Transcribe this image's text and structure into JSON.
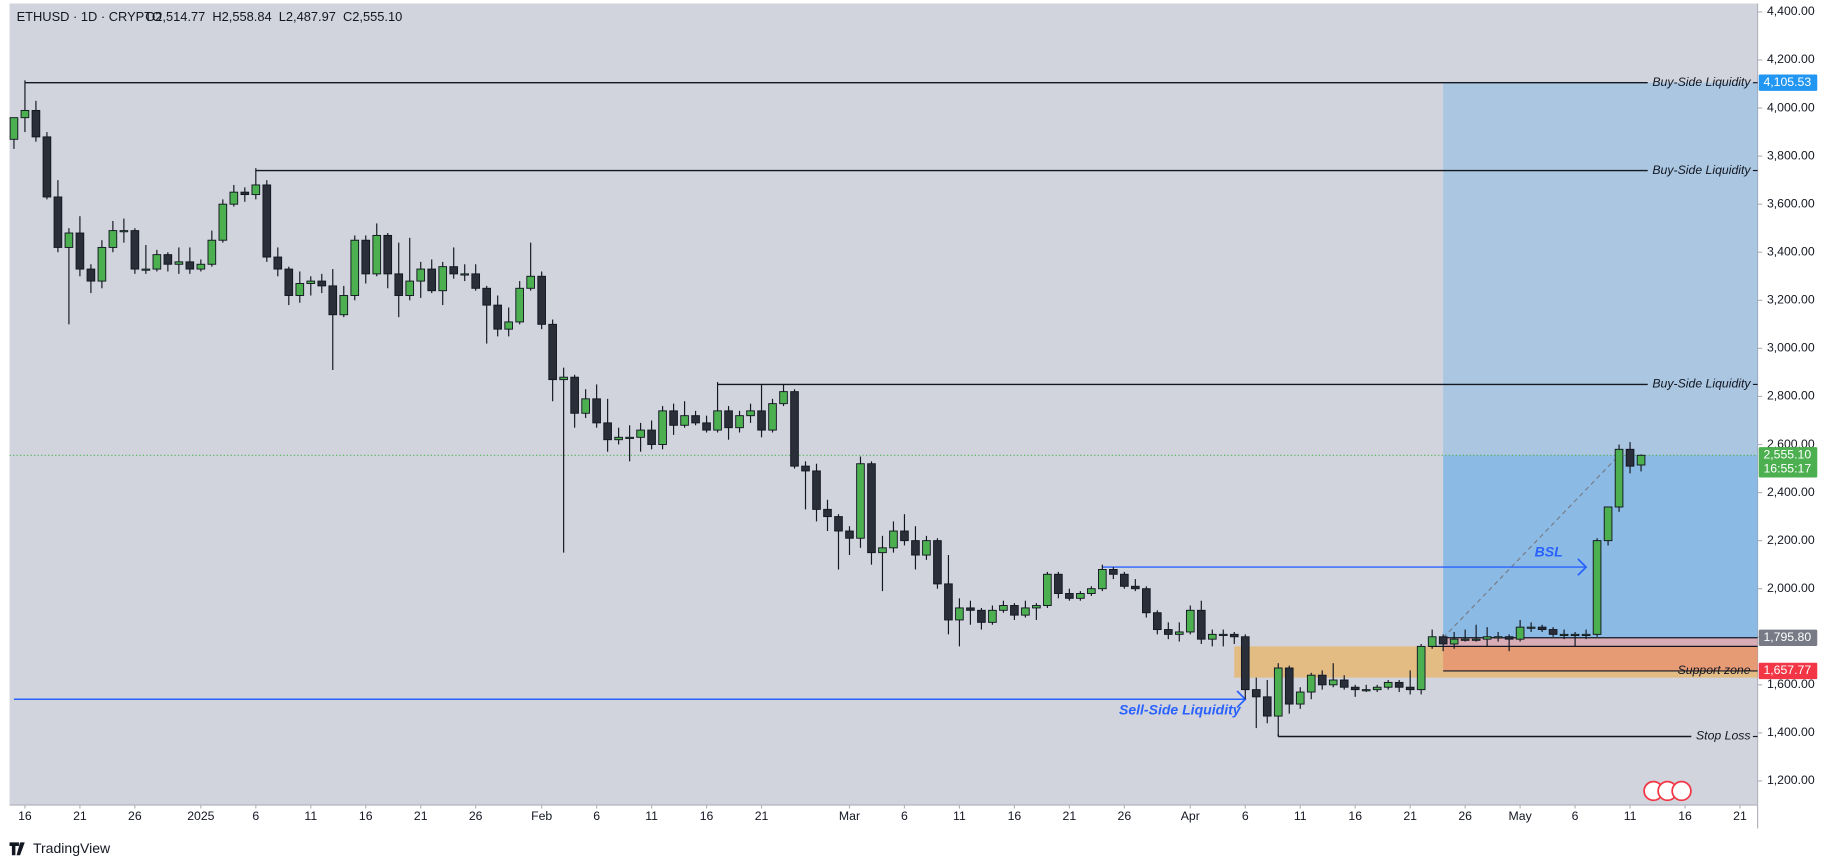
{
  "chart_data": {
    "type": "candlestick",
    "header": {
      "symbol": "ETHUSD · 1D · CRYPTO",
      "ohlc": [
        "O2,514.77",
        "H2,558.84",
        "L2,487.97",
        "C2,555.10"
      ]
    },
    "brand": "TradingView",
    "up_color": "#4caf50",
    "down_color": "#2a2e39",
    "xlim": [
      -0.4,
      158.6
    ],
    "xticks": [
      {
        "value": 1,
        "label": "16"
      },
      {
        "value": 6,
        "label": "21"
      },
      {
        "value": 11,
        "label": "26"
      },
      {
        "value": 17,
        "label": "2025"
      },
      {
        "value": 22,
        "label": "6"
      },
      {
        "value": 27,
        "label": "11"
      },
      {
        "value": 32,
        "label": "16"
      },
      {
        "value": 37,
        "label": "21"
      },
      {
        "value": 42,
        "label": "26"
      },
      {
        "value": 48,
        "label": "Feb"
      },
      {
        "value": 53,
        "label": "6"
      },
      {
        "value": 58,
        "label": "11"
      },
      {
        "value": 63,
        "label": "16"
      },
      {
        "value": 68,
        "label": "21"
      },
      {
        "value": 76,
        "label": "Mar"
      },
      {
        "value": 81,
        "label": "6"
      },
      {
        "value": 86,
        "label": "11"
      },
      {
        "value": 91,
        "label": "16"
      },
      {
        "value": 96,
        "label": "21"
      },
      {
        "value": 101,
        "label": "26"
      },
      {
        "value": 107,
        "label": "Apr"
      },
      {
        "value": 112,
        "label": "6"
      },
      {
        "value": 117,
        "label": "11"
      },
      {
        "value": 122,
        "label": "16"
      },
      {
        "value": 127,
        "label": "21"
      },
      {
        "value": 132,
        "label": "26"
      },
      {
        "value": 137,
        "label": "May"
      },
      {
        "value": 142,
        "label": "6"
      },
      {
        "value": 147,
        "label": "11"
      },
      {
        "value": 152,
        "label": "16"
      },
      {
        "value": 157,
        "label": "21"
      }
    ],
    "ylim": [
      1100,
      4435
    ],
    "yticks": [
      {
        "value": 1200,
        "label": "1,200.00"
      },
      {
        "value": 1400,
        "label": "1,400.00"
      },
      {
        "value": 1600,
        "label": "1,600.00"
      },
      {
        "value": 1800,
        "label": "1,800.00"
      },
      {
        "value": 2000,
        "label": "2,000.00"
      },
      {
        "value": 2200,
        "label": "2,200.00"
      },
      {
        "value": 2400,
        "label": "2,400.00"
      },
      {
        "value": 2600,
        "label": "2,600.00"
      },
      {
        "value": 2800,
        "label": "2,800.00"
      },
      {
        "value": 3000,
        "label": "3,000.00"
      },
      {
        "value": 3200,
        "label": "3,200.00"
      },
      {
        "value": 3400,
        "label": "3,400.00"
      },
      {
        "value": 3600,
        "label": "3,600.00"
      },
      {
        "value": 3800,
        "label": "3,800.00"
      },
      {
        "value": 4000,
        "label": "4,000.00"
      },
      {
        "value": 4200,
        "label": "4,200.00"
      },
      {
        "value": 4400,
        "label": "4,400.00"
      }
    ],
    "candles": [
      [
        3870,
        3960,
        3830,
        3960
      ],
      [
        3960,
        4105.53,
        3900,
        3990
      ],
      [
        3990,
        4030,
        3860,
        3880
      ],
      [
        3880,
        3900,
        3620,
        3630
      ],
      [
        3630,
        3700,
        3400,
        3420
      ],
      [
        3420,
        3500,
        3100,
        3480
      ],
      [
        3480,
        3550,
        3300,
        3330
      ],
      [
        3330,
        3350,
        3230,
        3280
      ],
      [
        3280,
        3450,
        3250,
        3420
      ],
      [
        3420,
        3530,
        3400,
        3490
      ],
      [
        3490,
        3540,
        3440,
        3490
      ],
      [
        3490,
        3500,
        3310,
        3330
      ],
      [
        3330,
        3430,
        3310,
        3330
      ],
      [
        3330,
        3410,
        3320,
        3390
      ],
      [
        3390,
        3400,
        3320,
        3350
      ],
      [
        3350,
        3420,
        3310,
        3360
      ],
      [
        3360,
        3420,
        3310,
        3330
      ],
      [
        3330,
        3370,
        3320,
        3350
      ],
      [
        3350,
        3490,
        3340,
        3450
      ],
      [
        3450,
        3620,
        3440,
        3600
      ],
      [
        3600,
        3680,
        3590,
        3650
      ],
      [
        3650,
        3670,
        3610,
        3640
      ],
      [
        3640,
        3740,
        3620,
        3680
      ],
      [
        3680,
        3700,
        3360,
        3380
      ],
      [
        3380,
        3420,
        3300,
        3330
      ],
      [
        3330,
        3340,
        3180,
        3220
      ],
      [
        3220,
        3320,
        3190,
        3270
      ],
      [
        3270,
        3300,
        3220,
        3280
      ],
      [
        3280,
        3310,
        3230,
        3260
      ],
      [
        3260,
        3330,
        2910,
        3140
      ],
      [
        3140,
        3260,
        3130,
        3220
      ],
      [
        3220,
        3470,
        3200,
        3450
      ],
      [
        3450,
        3470,
        3270,
        3310
      ],
      [
        3310,
        3520,
        3300,
        3470
      ],
      [
        3470,
        3480,
        3250,
        3310
      ],
      [
        3310,
        3440,
        3130,
        3220
      ],
      [
        3220,
        3460,
        3200,
        3280
      ],
      [
        3280,
        3360,
        3210,
        3330
      ],
      [
        3330,
        3370,
        3230,
        3240
      ],
      [
        3240,
        3360,
        3180,
        3340
      ],
      [
        3340,
        3420,
        3290,
        3310
      ],
      [
        3310,
        3350,
        3280,
        3310
      ],
      [
        3310,
        3350,
        3240,
        3250
      ],
      [
        3250,
        3260,
        3020,
        3180
      ],
      [
        3180,
        3220,
        3050,
        3080
      ],
      [
        3080,
        3170,
        3050,
        3110
      ],
      [
        3110,
        3280,
        3100,
        3250
      ],
      [
        3250,
        3440,
        3240,
        3300
      ],
      [
        3300,
        3320,
        3080,
        3100
      ],
      [
        3100,
        3120,
        2780,
        2870
      ],
      [
        2870,
        2920,
        2150,
        2880
      ],
      [
        2880,
        2890,
        2670,
        2730
      ],
      [
        2730,
        2830,
        2710,
        2790
      ],
      [
        2790,
        2850,
        2670,
        2690
      ],
      [
        2690,
        2790,
        2570,
        2620
      ],
      [
        2620,
        2670,
        2600,
        2630
      ],
      [
        2630,
        2680,
        2530,
        2630
      ],
      [
        2630,
        2690,
        2570,
        2660
      ],
      [
        2660,
        2700,
        2580,
        2600
      ],
      [
        2600,
        2760,
        2580,
        2740
      ],
      [
        2740,
        2770,
        2640,
        2680
      ],
      [
        2680,
        2780,
        2670,
        2720
      ],
      [
        2720,
        2740,
        2680,
        2690
      ],
      [
        2690,
        2720,
        2650,
        2660
      ],
      [
        2660,
        2850,
        2650,
        2740
      ],
      [
        2740,
        2760,
        2620,
        2670
      ],
      [
        2670,
        2740,
        2650,
        2720
      ],
      [
        2720,
        2770,
        2690,
        2740
      ],
      [
        2740,
        2850,
        2630,
        2660
      ],
      [
        2660,
        2790,
        2650,
        2770
      ],
      [
        2770,
        2850,
        2760,
        2820
      ],
      [
        2820,
        2830,
        2500,
        2510
      ],
      [
        2510,
        2530,
        2330,
        2490
      ],
      [
        2490,
        2520,
        2280,
        2330
      ],
      [
        2330,
        2370,
        2240,
        2300
      ],
      [
        2300,
        2310,
        2080,
        2240
      ],
      [
        2240,
        2260,
        2140,
        2210
      ],
      [
        2210,
        2550,
        2170,
        2520
      ],
      [
        2520,
        2530,
        2100,
        2150
      ],
      [
        2150,
        2220,
        1990,
        2170
      ],
      [
        2170,
        2280,
        2150,
        2240
      ],
      [
        2240,
        2310,
        2180,
        2200
      ],
      [
        2200,
        2260,
        2080,
        2140
      ],
      [
        2140,
        2220,
        2120,
        2200
      ],
      [
        2200,
        2210,
        2000,
        2020
      ],
      [
        2020,
        2140,
        1810,
        1870
      ],
      [
        1870,
        1960,
        1760,
        1920
      ],
      [
        1920,
        1950,
        1850,
        1910
      ],
      [
        1910,
        1920,
        1830,
        1860
      ],
      [
        1860,
        1930,
        1850,
        1910
      ],
      [
        1910,
        1950,
        1900,
        1930
      ],
      [
        1930,
        1940,
        1870,
        1890
      ],
      [
        1890,
        1950,
        1880,
        1920
      ],
      [
        1920,
        1940,
        1870,
        1930
      ],
      [
        1930,
        2070,
        1920,
        2060
      ],
      [
        2060,
        2070,
        1960,
        1980
      ],
      [
        1980,
        2000,
        1950,
        1960
      ],
      [
        1960,
        1990,
        1950,
        1980
      ],
      [
        1980,
        2010,
        1970,
        2000
      ],
      [
        2000,
        2100,
        1990,
        2080
      ],
      [
        2080,
        2090,
        2040,
        2060
      ],
      [
        2060,
        2070,
        2000,
        2010
      ],
      [
        2010,
        2040,
        1990,
        2000
      ],
      [
        2000,
        2010,
        1880,
        1900
      ],
      [
        1900,
        1910,
        1810,
        1830
      ],
      [
        1830,
        1860,
        1790,
        1810
      ],
      [
        1810,
        1860,
        1780,
        1820
      ],
      [
        1820,
        1930,
        1810,
        1910
      ],
      [
        1910,
        1950,
        1770,
        1790
      ],
      [
        1790,
        1830,
        1760,
        1810
      ],
      [
        1810,
        1830,
        1760,
        1810
      ],
      [
        1810,
        1820,
        1770,
        1800
      ],
      [
        1800,
        1810,
        1540,
        1580
      ],
      [
        1580,
        1630,
        1420,
        1550
      ],
      [
        1550,
        1620,
        1440,
        1470
      ],
      [
        1470,
        1690,
        1385,
        1670
      ],
      [
        1670,
        1680,
        1480,
        1520
      ],
      [
        1520,
        1590,
        1500,
        1570
      ],
      [
        1570,
        1650,
        1540,
        1640
      ],
      [
        1640,
        1660,
        1580,
        1600
      ],
      [
        1600,
        1690,
        1590,
        1620
      ],
      [
        1620,
        1640,
        1580,
        1590
      ],
      [
        1590,
        1600,
        1550,
        1580
      ],
      [
        1580,
        1600,
        1570,
        1580
      ],
      [
        1580,
        1600,
        1570,
        1590
      ],
      [
        1590,
        1620,
        1580,
        1610
      ],
      [
        1610,
        1620,
        1570,
        1590
      ],
      [
        1590,
        1660,
        1560,
        1580
      ],
      [
        1580,
        1770,
        1560,
        1760
      ],
      [
        1760,
        1830,
        1750,
        1800
      ],
      [
        1800,
        1810,
        1740,
        1770
      ],
      [
        1770,
        1820,
        1750,
        1790
      ],
      [
        1790,
        1830,
        1780,
        1790
      ],
      [
        1790,
        1850,
        1780,
        1790
      ],
      [
        1790,
        1840,
        1760,
        1800
      ],
      [
        1800,
        1820,
        1780,
        1800
      ],
      [
        1800,
        1810,
        1740,
        1790
      ],
      [
        1790,
        1870,
        1780,
        1840
      ],
      [
        1840,
        1860,
        1820,
        1840
      ],
      [
        1840,
        1850,
        1820,
        1830
      ],
      [
        1830,
        1840,
        1800,
        1810
      ],
      [
        1810,
        1830,
        1790,
        1810
      ],
      [
        1810,
        1820,
        1760,
        1810
      ],
      [
        1810,
        1830,
        1790,
        1810
      ],
      [
        1810,
        2210,
        1800,
        2200
      ],
      [
        2200,
        2340,
        2180,
        2340
      ],
      [
        2340,
        2600,
        2320,
        2580
      ],
      [
        2580,
        2610,
        2480,
        2510
      ],
      [
        2514.77,
        2558.84,
        2487.97,
        2555.1
      ]
    ],
    "last_price": {
      "value": 2555.1,
      "label": "2,555.10",
      "countdown": "16:55:17",
      "color": "#4caf50"
    },
    "position": {
      "start": 130,
      "entry": 1795.8,
      "entry_label": "1,795.80",
      "target": 4105.53,
      "target_label": "4,105.53",
      "stop": 1657.77,
      "stop_label": "1,657.77",
      "target_color": "#2196f3",
      "entry_color": "#787b86",
      "stop_color": "#f23645"
    },
    "support_zone": {
      "label": "Support zone",
      "top": 1760,
      "bottom": 1630,
      "start": 111,
      "color": "#ff9800"
    },
    "levels": [
      {
        "label": "Buy-Side Liquidity",
        "value": 4105.53,
        "start": 1,
        "color": "#131722"
      },
      {
        "label": "Buy-Side Liquidity",
        "value": 3740,
        "start": 22,
        "color": "#131722"
      },
      {
        "label": "Buy-Side Liquidity",
        "value": 2850,
        "start": 64,
        "color": "#131722"
      },
      {
        "label": "Stop Loss",
        "value": 1385,
        "start": 115,
        "color": "#131722"
      },
      {
        "label": "Sell-Side Liquidity",
        "value": 1540,
        "start": 0,
        "end": 112,
        "color": "#2962ff",
        "label_position": "below"
      },
      {
        "label": "BSL",
        "value": 2090,
        "start": 99,
        "end": 143,
        "color": "#2962ff",
        "label_position": "above"
      }
    ]
  }
}
